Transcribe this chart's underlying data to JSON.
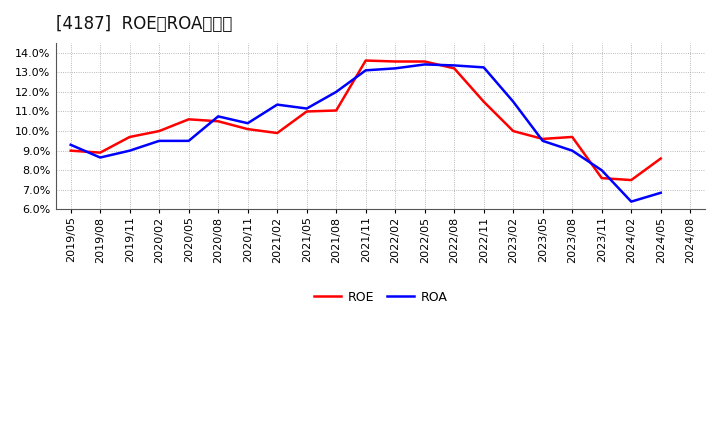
{
  "title": "[4187]  ROE、ROAの推移",
  "roe_data": [
    [
      "2019/05",
      9.0
    ],
    [
      "2019/08",
      8.9
    ],
    [
      "2019/11",
      9.7
    ],
    [
      "2020/02",
      10.0
    ],
    [
      "2020/05",
      10.6
    ],
    [
      "2020/08",
      10.5
    ],
    [
      "2020/11",
      10.1
    ],
    [
      "2021/02",
      9.9
    ],
    [
      "2021/05",
      11.0
    ],
    [
      "2021/08",
      11.05
    ],
    [
      "2021/11",
      13.6
    ],
    [
      "2022/02",
      13.55
    ],
    [
      "2022/05",
      13.55
    ],
    [
      "2022/08",
      13.2
    ],
    [
      "2022/11",
      11.5
    ],
    [
      "2023/02",
      10.0
    ],
    [
      "2023/05",
      9.6
    ],
    [
      "2023/08",
      9.7
    ],
    [
      "2023/11",
      7.6
    ],
    [
      "2024/02",
      7.5
    ],
    [
      "2024/05",
      8.6
    ],
    [
      "2024/08",
      null
    ]
  ],
  "roa_data": [
    [
      "2019/05",
      9.3
    ],
    [
      "2019/08",
      8.65
    ],
    [
      "2019/11",
      9.0
    ],
    [
      "2020/02",
      9.5
    ],
    [
      "2020/05",
      9.5
    ],
    [
      "2020/08",
      10.75
    ],
    [
      "2020/11",
      10.4
    ],
    [
      "2021/02",
      11.35
    ],
    [
      "2021/05",
      11.15
    ],
    [
      "2021/08",
      12.0
    ],
    [
      "2021/11",
      13.1
    ],
    [
      "2022/02",
      13.2
    ],
    [
      "2022/05",
      13.4
    ],
    [
      "2022/08",
      13.35
    ],
    [
      "2022/11",
      13.25
    ],
    [
      "2023/02",
      11.5
    ],
    [
      "2023/05",
      9.5
    ],
    [
      "2023/08",
      9.0
    ],
    [
      "2023/11",
      8.0
    ],
    [
      "2024/02",
      6.4
    ],
    [
      "2024/05",
      6.85
    ],
    [
      "2024/08",
      null
    ]
  ],
  "roe_color": "#ff0000",
  "roa_color": "#0000ff",
  "ylim": [
    6.0,
    14.5
  ],
  "yticks": [
    6.0,
    7.0,
    8.0,
    9.0,
    10.0,
    11.0,
    12.0,
    13.0,
    14.0
  ],
  "background_color": "#ffffff",
  "plot_bg_color": "#ffffff",
  "grid_color": "#999999",
  "title_fontsize": 12,
  "tick_fontsize": 8,
  "legend_fontsize": 9,
  "line_width": 1.8
}
